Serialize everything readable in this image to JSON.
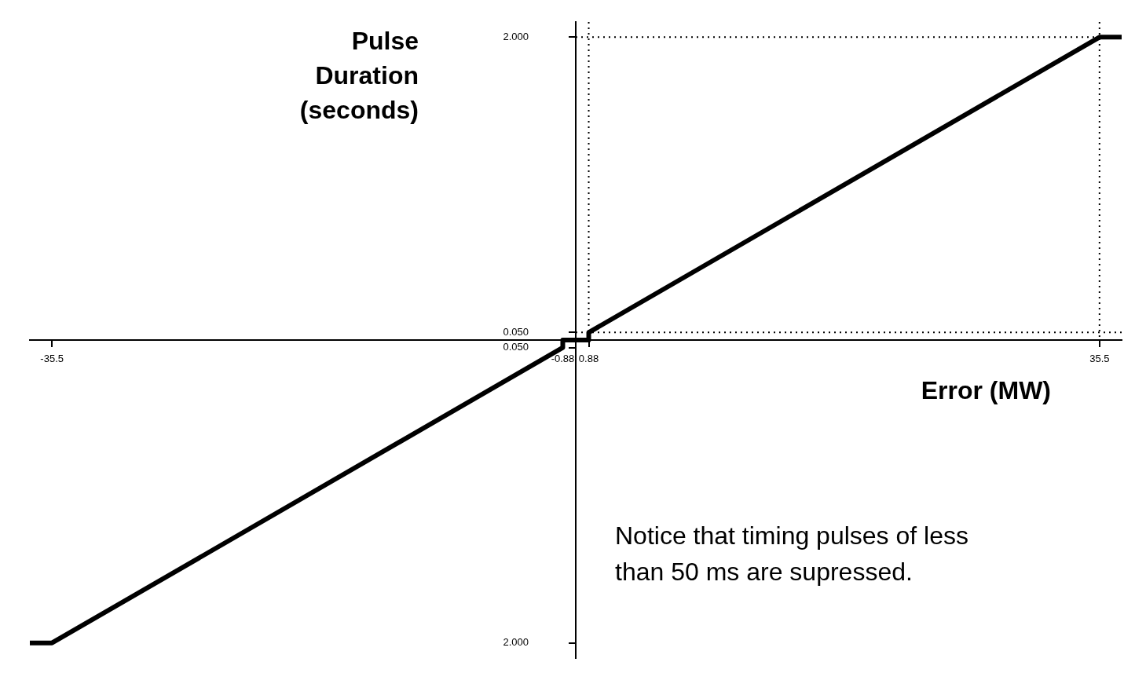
{
  "chart_data": {
    "type": "line",
    "xlabel": "Error (MW)",
    "ylabel": "Pulse Duration (seconds)",
    "annotations": [
      "Notice that timing pulses of less than 50 ms are supressed."
    ],
    "x": [
      -37,
      -35.5,
      -0.88,
      -0.88,
      0.88,
      0.88,
      35.5,
      37
    ],
    "series": [
      {
        "color": "#000000",
        "values": [
          -2,
          -2,
          -0.05,
          0,
          0,
          0.05,
          2,
          2
        ]
      }
    ],
    "xlim": [
      -37,
      37
    ],
    "ylim": [
      -2.1,
      2.1
    ],
    "xticks": [
      -35.5,
      -0.88,
      0.88,
      35.5
    ],
    "yticks": [
      {
        "value": 2,
        "label": "2.000"
      },
      {
        "value": 0.05,
        "label": "0.050"
      },
      {
        "value": -0.05,
        "label": "0.050"
      },
      {
        "value": -2,
        "label": "2.000"
      }
    ],
    "ref_lines": [
      {
        "axis": "x",
        "value": 0.88,
        "line_style": "dotted"
      },
      {
        "axis": "x",
        "value": 35.5,
        "line_style": "dotted"
      },
      {
        "axis": "y",
        "value": 2,
        "line_style": "dotted"
      },
      {
        "axis": "y",
        "value": 0.05,
        "line_style": "dotted"
      }
    ],
    "marker": "none",
    "line_style": "solid",
    "legend": false,
    "grid": false
  }
}
